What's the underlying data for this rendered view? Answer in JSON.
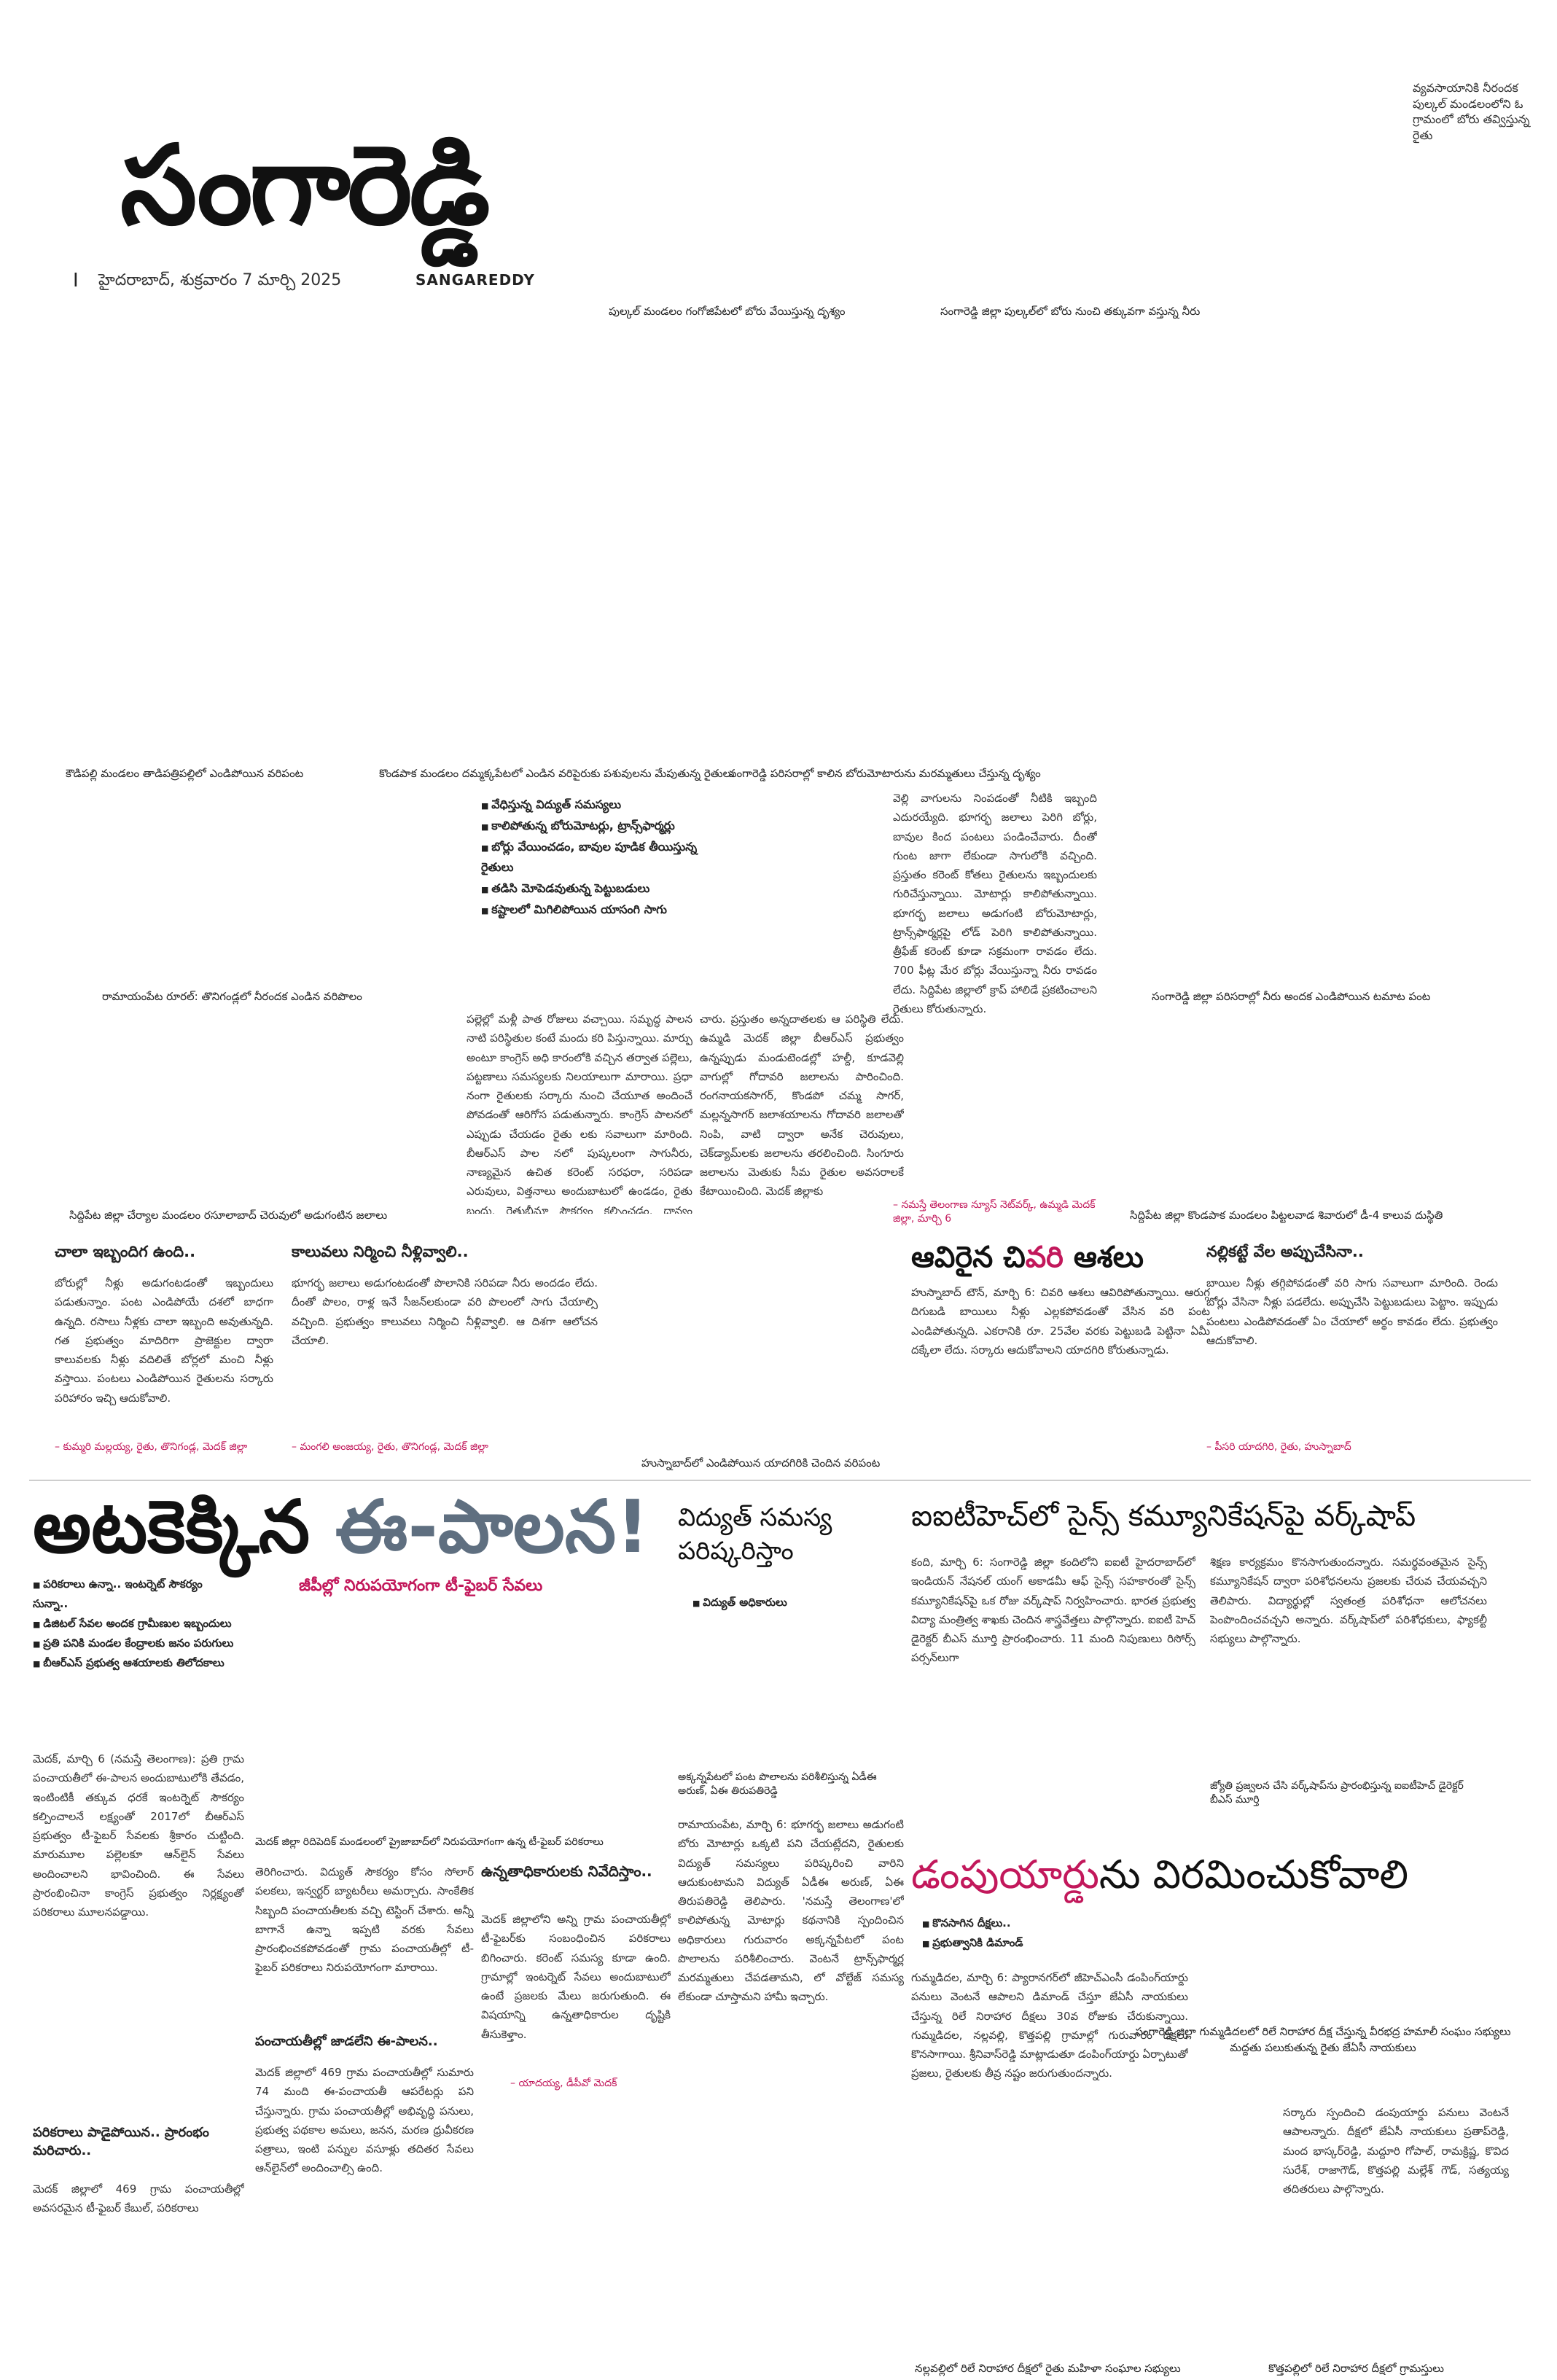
{
  "masthead": {
    "title": "సంగారెడ్డి",
    "page_number": "I",
    "dateline": "హైదరాబాద్, శుక్రవారం 7 మార్చి 2025",
    "subtitle": "SANGAREDDY"
  },
  "top_corner_caption": "వ్యవసాయానికి నీరందక పుల్కల్ మండలంలోని ఓ గ్రామంలో బోరు తవ్విస్తున్న రైతు",
  "captions": {
    "pulkal_bore": "పుల్కల్ మండలం గంగోజిపేటలో బోరు వేయిస్తున్న దృశ్యం",
    "sangareddy_bore_water": "సంగారెడ్డి జిల్లా పుల్కల్‌లో బోరు నుంచి తక్కువగా వస్తున్న నీరు",
    "kowdipally": "కౌడిపల్లి మండలం తాడిపత్రిపల్లిలో ఎండిపోయిన వరిపంట",
    "kondapaka": "కొండపాక మండలం దమ్మక్కపేటలో ఎండిన వరిపైరుకు పశువులను మేపుతున్న రైతులు",
    "sangareddy_field": "సంగారెడ్డి పరిసరాల్లో కాలిన బోరుమోటారును మరమ్మతులు చేస్తున్న దృశ్యం",
    "ramayampet": "రామాయంపేట రూరల్: తొనిగండ్లలో నీరందక ఎండిన వరిపొలం",
    "tomato": "సంగారెడ్డి జిల్లా పరిసరాల్లో నీరు అందక ఎండిపోయిన టమాట పంట",
    "siddipet_tank": "సిద్దిపేట జిల్లా చేర్యాల మండలం రసూలాబాద్ చెరువులో అడుగంటిన జలాలు",
    "siddipet_kondapaka": "సిద్దిపేట జిల్లా కొండపాక మండలం పిట్టలవాడ శివారులో డీ-4 కాలువ దుస్థితి",
    "husnabad": "హుస్నాబాద్‌లో ఎండిపోయిన యాదగిరికి చెందిన వరిపంట",
    "medak_kiosk": "మెదక్ జిల్లా రిదిపెదిక్ మండలంలో ప్రైజాబాద్‌లో నిరుపయోగంగా ఉన్న టీ-ఫైబర్ పరికరాలు",
    "akkannapet": "అక్కన్నపేటలో పంట పొలాలను పరిశీలిస్తున్న ఏడీఈ అరుణ్, ఏఈ తిరుపతిరెడ్డి",
    "workshop_photo": "జ్యోతి ప్రజ్వలన చేసి వర్క్‌షాప్‌ను ప్రారంభిస్తున్న ఐఐటీహెచ్ డైరెక్టర్ బీఎస్ మూర్తి",
    "gummadidala": "సంగారెడ్డి జిల్లా గుమ్మడిదలలో రిలే నిరాహార దీక్ష చేస్తున్న వీరభద్ర హమాలీ సంఘం సభ్యులు మద్దతు పలుకుతున్న రైతు జేఏసీ నాయకులు",
    "nallavalli": "నల్లవల్లిలో రిలే నిరాహార దీక్షలో రైతు మహిళా సంఘాల సభ్యులు",
    "kottapalli": "కొత్తపల్లిలో రిలే నిరాహార దీక్షలో గ్రామస్తులు"
  },
  "farm_bullets": [
    "వేధిస్తున్న విద్యుత్ సమస్యలు",
    "కాలిపోతున్న బోరుమోటర్లు, ట్రాన్స్‌ఫార్మర్లు",
    "బోర్లు వేయించడం, బావుల పూడిక తీయిస్తున్న రైతులు",
    "తడిసి మోపెడవుతున్న పెట్టుబడులు",
    "కష్టాలలో మిగిలిపోయిన యాసంగి సాగు"
  ],
  "farm_story": {
    "col1": "పల్లెల్లో మళ్లీ పాత రోజులు వచ్చాయి. సమృద్ధ పాలన నాటి పరిస్థితుల కంటే మందు కరి పిస్తున్నాయి. మార్పు అంటూ కాంగ్రెస్ అధి కారంలోకి వచ్చిన తర్వాత పల్లెలు, పట్టణాలు సమస్యలకు నిలయాలుగా మారాయి. ప్రధా నంగా రైతులకు సర్కారు నుంచి చేయూత అందించే పోవడంతో ఆరిగోస పడుతున్నారు. కాంగ్రెస్ పాలనలో ఎప్పుడు చేయడం రైతు లకు సవాలుగా మారింది. బీఆర్ఎస్ పాల నలో పుష్కలంగా సాగునీరు, నాణ్యమైన ఉచిత కరెంట్ సరఫరా, సరిపడా ఎరువులు, విత్తనాలు అందుబాటులో ఉండడం, రైతు బంధు, రైతుబీమా సౌకర్యం కల్పించడం, ధాన్యం కొనుగోలు కేంద్రాలు",
    "col2": "చారు. ప్రస్తుతం అన్నదాతలకు ఆ పరిస్థితి లేదు. ఉమ్మడి మెదక్ జిల్లా బీఆర్ఎస్ ప్రభుత్వం ఉన్నప్పుడు మండుటెండల్లో హల్దీ, కూడవెల్లి వాగుల్లో గోదావరి జలాలను పారించింది. రంగనాయకసాగర్, కొండపో చమ్మ సాగర్, మల్లన్నసాగర్ జలాశయాలను గోదావరి జలాలతో నింపి, వాటి ద్వారా అనేక చెరువులు, చెక్‌డ్యామ్‌లకు జలాలను తరలించింది. సింగూరు జలాలను మెతుకు సీమ రైతుల అవసరాలకే కేటాయించింది. మెదక్ జిల్లాకు",
    "col3": "వెల్లి వాగులను నింపడంతో నీటికి ఇబ్బంది ఎదురయ్యేది. భూగర్భ జలాలు పెరిగి బోర్లు, బావుల కింద పంటలు పండించేవారు. దీంతో గుంట జాగా లేకుండా సాగులోకి వచ్చింది. ప్రస్తుతం కరెంట్ కోతలు రైతులను ఇబ్బందులకు గురిచేస్తున్నాయి. మోటార్లు కాలిపోతున్నాయి. భూగర్భ జలాలు అడుగంటి బోరుమోటార్లు, ట్రాన్స్‌ఫార్మర్లపై లోడ్ పెరిగి కాలిపోతున్నాయి. త్రీఫేజ్ కరెంట్ కూడా సక్రమంగా రావడం లేదు. 700 ఫీట్ల మేర బోర్లు వేయిస్తున్నా నీరు రావడం లేదు. సిద్దిపేట జిల్లాలో క్రాప్ హాలిడే ప్రకటించాలని రైతులు కోరుతున్నారు.",
    "byline": "– నమస్తే తెలంగాణ న్యూస్ నెట్‌వర్క్, ఉమ్మడి మెదక్ జిల్లా, మార్చి 6"
  },
  "quotes": [
    {
      "heading": "చాలా ఇబ్బందిగ ఉంది..",
      "body": "బోరుల్లో నీళ్లు అడుగంటడంతో ఇబ్బందులు పడుతున్నాం. పంట ఎండిపోయే దశలో బాధగా ఉన్నది. రసాలు నీళ్లకు చాలా ఇబ్బంది అవుతున్నది. గత ప్రభుత్వం మాదిరిగా ప్రాజెక్టుల ద్వారా కాలువలకు నీళ్లు వదిలితే బోర్లలో మంచి నీళ్లు వస్తాయి. పంటలు ఎండిపోయిన రైతులను సర్కారు పరిహారం ఇచ్చి ఆదుకోవాలి.",
      "byline": "– కుమ్మరి మల్లయ్య, రైతు, తొనిగండ్ల, మెదక్ జిల్లా"
    },
    {
      "heading": "కాలువలు నిర్మించి నీళ్లివ్వాలి..",
      "body": "భూగర్భ జలాలు అడుగంటడంతో పొలానికి సరిపడా నీరు అందడం లేదు. దీంతో పొలం, రాళ్ల ఇనే సీజన్‌లకుండా వరి పొలంలో సాగు చేయాల్సి వచ్చింది. ప్రభుత్వం కాలువలు నిర్మించి నీళ్లివ్వాలి. ఆ దిశగా ఆలోచన చేయాలి.",
      "byline": "– మంగలి అంజయ్య, రైతు, తొనిగండ్ల, మెదక్ జిల్లా"
    },
    {
      "heading": "నల్లికట్టే వేల అప్పుచేసినా..",
      "body": "బాయిల నీళ్లు తగ్గిపోవడంతో వరి సాగు సవాలుగా మారింది. రెండు బోర్లు వేసినా నీళ్లు పడలేదు. అప్పుచేసి పెట్టుబడులు పెట్టాం. ఇప్పుడు పంటలు ఎండిపోవడంతో ఏం చేయాలో అర్థం కావడం లేదు. ప్రభుత్వం ఆదుకోవాలి.",
      "byline": "– పీసరి యాదగిరి, రైతు, హుస్నాబాద్"
    }
  ],
  "husnabad_story": {
    "headline_part1": "ఆవిరైన చి",
    "headline_part2": "వరి",
    "headline_part3": " ఆశలు",
    "body": "హుస్నాబాద్ టౌన్, మార్చి 6: చివరి ఆశలు ఆవిరిపోతున్నాయి. ఆరుగ్గ దిగుబడి బాయిలు నీళ్లు ఎల్లకపోవడంతో వేసిన వరి పంట ఎండిపోతున్నది. ఎకరానికి రూ. 25వేల వరకు పెట్టుబడి పెట్టినా ఏమీ దక్కేలా లేదు. సర్కారు ఆదుకోవాలని యాదగిరి కోరుతున్నాడు."
  },
  "epalana": {
    "headline_part1": "అటకెక్కిన ",
    "headline_part2": "ఈ-పాలన!",
    "subheadline": "జీపీల్లో నిరుపయోగంగా టీ-ఫైబర్ సేవలు",
    "bullets": [
      "పరికరాలు ఉన్నా.. ఇంటర్నెట్ సౌకర్యం సున్నా..",
      "డిజిటల్ సేవల అందక గ్రామీణుల ఇబ్బందులు",
      "ప్రతి పనికి మండల కేంద్రాలకు జనం పరుగులు",
      "బీఆర్ఎస్ ప్రభుత్వ ఆశయాలకు తిలోదకాలు"
    ],
    "col1": "మెదక్, మార్చి 6 (నమస్తే తెలంగాణ): ప్రతి గ్రామ పంచాయతీలో ఈ-పాలన అందుబాటులోకి తేవడం, ఇంటింటికీ తక్కువ ధరకే ఇంటర్నెట్ సౌకర్యం కల్పించాలనే లక్ష్యంతో 2017లో బీఆర్ఎస్ ప్రభుత్వం టీ-ఫైబర్ సేవలకు శ్రీకారం చుట్టింది. మారుమూల పల్లెలకూ ఆన్‌లైన్ సేవలు అందించాలని భావించింది. ఈ సేవలు ప్రారంభించినా కాంగ్రెస్ ప్రభుత్వం నిర్లక్ష్యంతో పరికరాలు మూలనపడ్డాయి.",
    "sub1": "పరికరాలు పాడైపోయిన.. ప్రారంభం మరిచారు..",
    "col1b": "మెదక్ జిల్లాలో 469 గ్రామ పంచాయతీల్లో అవసరమైన టీ-ఫైబర్ కేబుల్, పరికరాలు",
    "col2": "తెరిగించారు. విద్యుత్ సౌకర్యం కోసం సోలార్ పలకలు, ఇన్వర్టర్ బ్యాటరీలు అమర్చారు. సాంకేతిక సిబ్బంది పంచాయతీలకు వచ్చి టెస్టింగ్ చేశారు. అన్నీ బాగానే ఉన్నా ఇప్పటి వరకు సేవలు ప్రారంభించకపోవడంతో గ్రామ పంచాయతీల్లో టీ-ఫైబర్ పరికరాలు నిరుపయోగంగా మారాయి.",
    "sub2": "పంచాయతీల్లో జాడలేని ఈ-పాలన..",
    "col2b": "మెదక్ జిల్లాలో 469 గ్రామ పంచాయతీల్లో సుమారు 74 మంది ఈ-పంచాయతీ ఆపరేటర్లు పని చేస్తున్నారు. గ్రామ పంచాయతీల్లో అభివృద్ధి పనులు, ప్రభుత్వ పథకాల అమలు, జనన, మరణ ధ్రువీకరణ పత్రాలు, ఇంటి పన్నుల వసూళ్లు తదితర సేవలు ఆన్‌లైన్‌లో అందించాల్సి ఉంది.",
    "sub3": "ఉన్నతాధికారులకు నివేదిస్తాం..",
    "col3": "మెదక్ జిల్లాలోని అన్ని గ్రామ పంచాయతీల్లో టీ-ఫైబర్‌కు సంబంధించిన పరికరాలు బిగించారు. కరెంట్ సమస్య కూడా ఉంది. గ్రామాల్లో ఇంటర్నెట్ సేవలు అందుబాటులో ఉంటే ప్రజలకు మేలు జరుగుతుంది. ఈ విషయాన్ని ఉన్నతాధికారుల దృష్టికి తీసుకెళ్తాం.",
    "byline3": "– యాదయ్య, డీపీవో మెదక్"
  },
  "power_story": {
    "headline": "విద్యుత్ సమస్య పరిష్కరిస్తాం",
    "bullet": "విద్యుత్ అధికారులు",
    "body": "రామాయంపేట, మార్చి 6: భూగర్భ జలాలు అడుగంటి బోరు మోటార్లు ఒక్కటి పని చేయట్లేదని, రైతులకు విద్యుత్ సమస్యలు పరిష్కరించి వారిని ఆదుకుంటామని విద్యుత్ ఏడీఈ అరుణ్, ఏఈ తిరుపతిరెడ్డి తెలిపారు. 'నమస్తే తెలంగాణ'లో కాలిపోతున్న మోటార్లు కథనానికి స్పందించిన అధికారులు గురువారం అక్కన్నపేటలో పంట పొలాలను పరిశీలించారు. వెంటనే ట్రాన్స్‌ఫార్మర్ల మరమ్మతులు చేపడతామని, లో వోల్టేజ్ సమస్య లేకుండా చూస్తామని హామీ ఇచ్చారు."
  },
  "workshop": {
    "headline": "ఐఐటీహెచ్‌లో సైన్స్ కమ్యూనికేషన్‌పై వర్క్‌షాప్",
    "col1": "కంది, మార్చి 6: సంగారెడ్డి జిల్లా కందిలోని ఐఐటీ హైదరాబాద్‌లో ఇండియన్ నేషనల్ యంగ్ అకాడమీ ఆఫ్ సైన్స్ సహకారంతో సైన్స్ కమ్యూనికేషన్‌పై ఒక రోజు వర్క్‌షాప్ నిర్వహించారు. భారత ప్రభుత్వ విద్యా మంత్రిత్వ శాఖకు చెందిన శాస్త్రవేత్తలు పాల్గొన్నారు. ఐఐటీ హెచ్ డైరెక్టర్ బీఎస్ మూర్తి ప్రారంభించారు. 11 మంది నిపుణులు రిసోర్స్ పర్సన్‌లుగా",
    "col2": "శిక్షణ కార్యక్రమం కొనసాగుతుందన్నారు. సమర్థవంతమైన సైన్స్ కమ్యూనికేషన్ ద్వారా పరిశోధనలను ప్రజలకు చేరువ చేయవచ్చని తెలిపారు. విద్యార్థుల్లో స్వతంత్ర పరిశోధనా ఆలోచనలు పెంపొందించవచ్చని అన్నారు. వర్క్‌షాప్‌లో పరిశోధకులు, ఫ్యాకల్టీ సభ్యులు పాల్గొన్నారు."
  },
  "dumping": {
    "headline_part1": "డంపుయార్డు",
    "headline_part2": "ను విరమించుకోవాలి",
    "bullets": [
      "కొనసాగిన దీక్షలు..",
      "ప్రభుత్వానికి డిమాండ్"
    ],
    "col1": "గుమ్మడిదల, మార్చి 6: ప్యారానగర్‌లో జీహెచ్ఎంసీ డంపింగ్‌యార్డు పనులు వెంటనే ఆపాలని డిమాండ్ చేస్తూ జేఏసీ నాయకులు చేస్తున్న రిలే నిరాహార దీక్షలు 30వ రోజుకు చేరుకున్నాయి. గుమ్మడిదల, నల్లవల్లి, కొత్తపల్లి గ్రామాల్లో గురువారం దీక్షలు కొనసాగాయి. శ్రీనివాస్‌రెడ్డి మాట్లాడుతూ డంపింగ్‌యార్డు ఏర్పాటుతో ప్రజలు, రైతులకు తీవ్ర నష్టం జరుగుతుందన్నారు.",
    "col2": "సర్కారు స్పందించి డంపుయార్డు పనులు వెంటనే ఆపాలన్నారు. దీక్షలో జేఏసీ నాయకులు ప్రతాప్‌రెడ్డి, మంద భాస్కర్‌రెడ్డి, మద్దూరి గోపాల్, రామక్రిష్ణ, కొవిద సురేశ్, రాజాగౌడ్, కొత్తపల్లి మల్లేశ్ గౌడ్, సత్యయ్య తదితరులు పాల్గొన్నారు."
  }
}
